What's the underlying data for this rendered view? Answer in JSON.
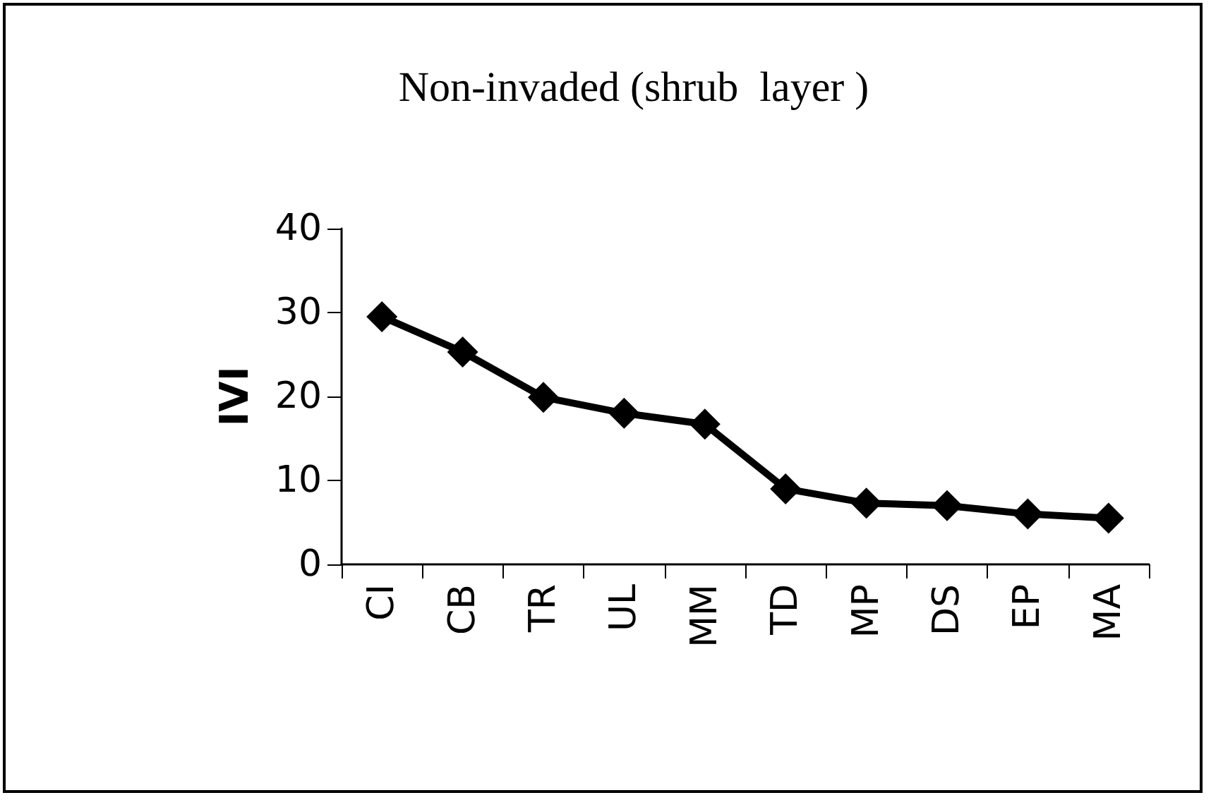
{
  "chart_data": {
    "type": "line",
    "title": "Non-invaded (shrub  layer )",
    "ylabel": "IVI",
    "categories": [
      "CI",
      "CB",
      "TR",
      "UL",
      "MM",
      "TD",
      "MP",
      "DS",
      "EP",
      "MA"
    ],
    "series": [
      {
        "color": "#000000",
        "values": [
          29.5,
          25.3,
          19.9,
          18,
          16.7,
          9,
          7.3,
          7,
          6,
          5.5
        ]
      }
    ],
    "ylim": [
      0,
      40
    ],
    "yticks": [
      0,
      10,
      20,
      30,
      40
    ],
    "grid": false,
    "marker": "diamond",
    "line_style": "solid"
  }
}
